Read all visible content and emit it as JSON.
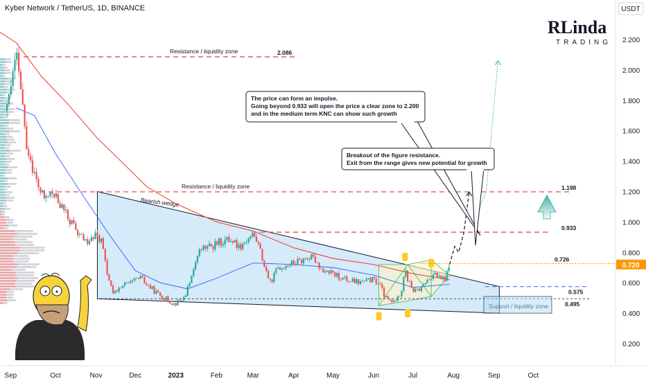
{
  "header": {
    "symbol_title": "Kyber Network / TetherUS, 1D, BINANCE",
    "currency": "USDT"
  },
  "logo": {
    "line1": "RLinda",
    "line2": "TRADING"
  },
  "colors": {
    "up": "#26a69a",
    "down": "#ef5350",
    "resistance": "#e53935",
    "ma_fast": "#2962ff",
    "ma_slow": "#f44336",
    "wedge_fill": "#b3dbf5",
    "price_badge": "#ff9800",
    "pattern_fill": "#fff3c4"
  },
  "chart_data": {
    "type": "candlestick",
    "xaxis_ticks": [
      "Sep",
      "Oct",
      "Nov",
      "Dec",
      "2023",
      "Feb",
      "Mar",
      "Apr",
      "May",
      "Jun",
      "Jul",
      "Aug",
      "Sep",
      "Oct"
    ],
    "yaxis_ticks": [
      "2.200",
      "2.000",
      "1.800",
      "1.600",
      "1.400",
      "1.200",
      "1.000",
      "0.800",
      "0.600",
      "0.400",
      "0.200"
    ],
    "ylim": [
      0.1,
      2.3
    ],
    "last_price": "0.720",
    "levels": [
      {
        "value": 2.086,
        "label": "2.086",
        "zone": "Resistance / liquidity zone"
      },
      {
        "value": 1.198,
        "label": "1.198",
        "zone": "Resistance / liquidity zone"
      },
      {
        "value": 0.933,
        "label": "0.933",
        "zone": ""
      },
      {
        "value": 0.726,
        "label": "0.726",
        "zone": ""
      },
      {
        "value": 0.575,
        "label": "0.575",
        "zone": ""
      },
      {
        "value": 0.495,
        "label": "0.495",
        "zone": "Support / liquidity zone"
      }
    ],
    "price_path": [
      {
        "d": "2022-08-25",
        "p": 1.73
      },
      {
        "d": "2022-08-30",
        "p": 1.98
      },
      {
        "d": "2022-09-01",
        "p": 2.086
      },
      {
        "d": "2022-09-05",
        "p": 1.85
      },
      {
        "d": "2022-09-08",
        "p": 1.55
      },
      {
        "d": "2022-09-12",
        "p": 1.42
      },
      {
        "d": "2022-09-16",
        "p": 1.28
      },
      {
        "d": "2022-09-22",
        "p": 1.15
      },
      {
        "d": "2022-09-28",
        "p": 1.19
      },
      {
        "d": "2022-10-05",
        "p": 1.11
      },
      {
        "d": "2022-10-12",
        "p": 1.01
      },
      {
        "d": "2022-10-18",
        "p": 0.93
      },
      {
        "d": "2022-10-25",
        "p": 0.86
      },
      {
        "d": "2022-11-01",
        "p": 0.91
      },
      {
        "d": "2022-11-05",
        "p": 0.88
      },
      {
        "d": "2022-11-09",
        "p": 0.68
      },
      {
        "d": "2022-11-14",
        "p": 0.52
      },
      {
        "d": "2022-11-20",
        "p": 0.58
      },
      {
        "d": "2022-11-28",
        "p": 0.6
      },
      {
        "d": "2022-12-05",
        "p": 0.63
      },
      {
        "d": "2022-12-12",
        "p": 0.57
      },
      {
        "d": "2022-12-18",
        "p": 0.53
      },
      {
        "d": "2022-12-25",
        "p": 0.49
      },
      {
        "d": "2022-12-31",
        "p": 0.46
      },
      {
        "d": "2023-01-07",
        "p": 0.5
      },
      {
        "d": "2023-01-12",
        "p": 0.6
      },
      {
        "d": "2023-01-16",
        "p": 0.75
      },
      {
        "d": "2023-01-20",
        "p": 0.82
      },
      {
        "d": "2023-01-28",
        "p": 0.84
      },
      {
        "d": "2023-02-05",
        "p": 0.87
      },
      {
        "d": "2023-02-12",
        "p": 0.89
      },
      {
        "d": "2023-02-18",
        "p": 0.84
      },
      {
        "d": "2023-02-24",
        "p": 0.88
      },
      {
        "d": "2023-03-01",
        "p": 0.92
      },
      {
        "d": "2023-03-05",
        "p": 0.85
      },
      {
        "d": "2023-03-10",
        "p": 0.7
      },
      {
        "d": "2023-03-14",
        "p": 0.6
      },
      {
        "d": "2023-03-20",
        "p": 0.7
      },
      {
        "d": "2023-03-28",
        "p": 0.72
      },
      {
        "d": "2023-04-05",
        "p": 0.74
      },
      {
        "d": "2023-04-12",
        "p": 0.77
      },
      {
        "d": "2023-04-18",
        "p": 0.75
      },
      {
        "d": "2023-04-22",
        "p": 0.69
      },
      {
        "d": "2023-04-30",
        "p": 0.66
      },
      {
        "d": "2023-05-08",
        "p": 0.63
      },
      {
        "d": "2023-05-15",
        "p": 0.61
      },
      {
        "d": "2023-05-22",
        "p": 0.6
      },
      {
        "d": "2023-05-30",
        "p": 0.62
      },
      {
        "d": "2023-06-05",
        "p": 0.6
      },
      {
        "d": "2023-06-10",
        "p": 0.5
      },
      {
        "d": "2023-06-15",
        "p": 0.47
      },
      {
        "d": "2023-06-20",
        "p": 0.5
      },
      {
        "d": "2023-06-23",
        "p": 0.58
      },
      {
        "d": "2023-06-25",
        "p": 0.72
      },
      {
        "d": "2023-06-27",
        "p": 0.62
      },
      {
        "d": "2023-07-02",
        "p": 0.54
      },
      {
        "d": "2023-07-07",
        "p": 0.56
      },
      {
        "d": "2023-07-12",
        "p": 0.62
      },
      {
        "d": "2023-07-17",
        "p": 0.66
      },
      {
        "d": "2023-07-22",
        "p": 0.62
      },
      {
        "d": "2023-07-26",
        "p": 0.63
      },
      {
        "d": "2023-07-29",
        "p": 0.72
      }
    ],
    "ma_fast": [
      {
        "d": "2022-09-01",
        "p": 1.75
      },
      {
        "d": "2022-09-15",
        "p": 1.7
      },
      {
        "d": "2022-10-01",
        "p": 1.45
      },
      {
        "d": "2022-10-20",
        "p": 1.2
      },
      {
        "d": "2022-11-10",
        "p": 0.93
      },
      {
        "d": "2022-12-01",
        "p": 0.68
      },
      {
        "d": "2022-12-20",
        "p": 0.6
      },
      {
        "d": "2023-01-10",
        "p": 0.56
      },
      {
        "d": "2023-02-01",
        "p": 0.63
      },
      {
        "d": "2023-03-01",
        "p": 0.73
      },
      {
        "d": "2023-04-01",
        "p": 0.72
      },
      {
        "d": "2023-05-01",
        "p": 0.7
      },
      {
        "d": "2023-06-01",
        "p": 0.65
      },
      {
        "d": "2023-07-01",
        "p": 0.57
      },
      {
        "d": "2023-07-29",
        "p": 0.59
      }
    ],
    "ma_slow": [
      {
        "d": "2022-08-10",
        "p": 2.3
      },
      {
        "d": "2022-09-01",
        "p": 2.18
      },
      {
        "d": "2022-09-20",
        "p": 1.96
      },
      {
        "d": "2022-10-10",
        "p": 1.78
      },
      {
        "d": "2022-11-01",
        "p": 1.56
      },
      {
        "d": "2022-11-20",
        "p": 1.4
      },
      {
        "d": "2022-12-10",
        "p": 1.23
      },
      {
        "d": "2023-01-01",
        "p": 1.12
      },
      {
        "d": "2023-02-01",
        "p": 1.0
      },
      {
        "d": "2023-03-01",
        "p": 0.94
      },
      {
        "d": "2023-04-01",
        "p": 0.83
      },
      {
        "d": "2023-05-01",
        "p": 0.76
      },
      {
        "d": "2023-06-01",
        "p": 0.72
      },
      {
        "d": "2023-07-01",
        "p": 0.66
      },
      {
        "d": "2023-07-29",
        "p": 0.62
      }
    ],
    "projection": [
      {
        "d": "2023-07-29",
        "p": 0.72
      },
      {
        "d": "2023-08-02",
        "p": 0.84
      },
      {
        "d": "2023-08-05",
        "p": 0.8
      },
      {
        "d": "2023-08-09",
        "p": 0.933
      },
      {
        "d": "2023-08-13",
        "p": 1.198
      }
    ],
    "projection_long": [
      {
        "d": "2023-08-17",
        "p": 0.933
      },
      {
        "d": "2023-08-22",
        "p": 1.12
      },
      {
        "d": "2023-08-26",
        "p": 1.198
      },
      {
        "d": "2023-09-04",
        "p": 2.06
      }
    ],
    "wedge": {
      "upper": [
        {
          "d": "2022-11-02",
          "p": 1.2
        },
        {
          "d": "2023-09-05",
          "p": 0.575
        }
      ],
      "lower": [
        {
          "d": "2022-11-02",
          "p": 0.495
        },
        {
          "d": "2023-09-05",
          "p": 0.4
        }
      ],
      "label": "Bearish wedge"
    },
    "annotations": [
      {
        "id": "impulse",
        "lines": [
          "The price can form an impulse.",
          "Going beyond 0.933 will open the price a clear zone to 2.200",
          "and in the medium term KNC can show such growth"
        ]
      },
      {
        "id": "breakout",
        "lines": [
          "Breakout of the figure resistance.",
          "Exit from the range gives new potential for growth"
        ]
      }
    ]
  }
}
